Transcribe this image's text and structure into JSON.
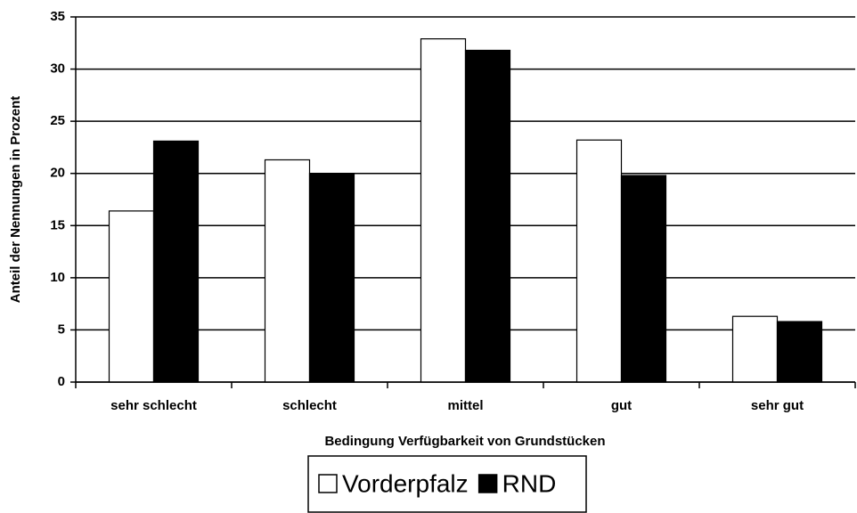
{
  "chart_data": {
    "type": "bar",
    "x_label": "Bedingung Verfügbarkeit von Grundstücken",
    "y_label": "Anteil der Nennungen in Prozent",
    "categories": [
      "sehr schlecht",
      "schlecht",
      "mittel",
      "gut",
      "sehr gut"
    ],
    "series": [
      {
        "name": "Vorderpfalz",
        "color": "#ffffff",
        "values": [
          16.4,
          21.3,
          32.9,
          23.2,
          6.3
        ]
      },
      {
        "name": "RND",
        "color": "#000000",
        "values": [
          23.1,
          20.0,
          31.8,
          19.8,
          5.8
        ]
      }
    ],
    "ylim": [
      0,
      35
    ],
    "yticks": [
      0,
      5,
      10,
      15,
      20,
      25,
      30,
      35
    ],
    "grid": true,
    "legend": "bottom"
  }
}
